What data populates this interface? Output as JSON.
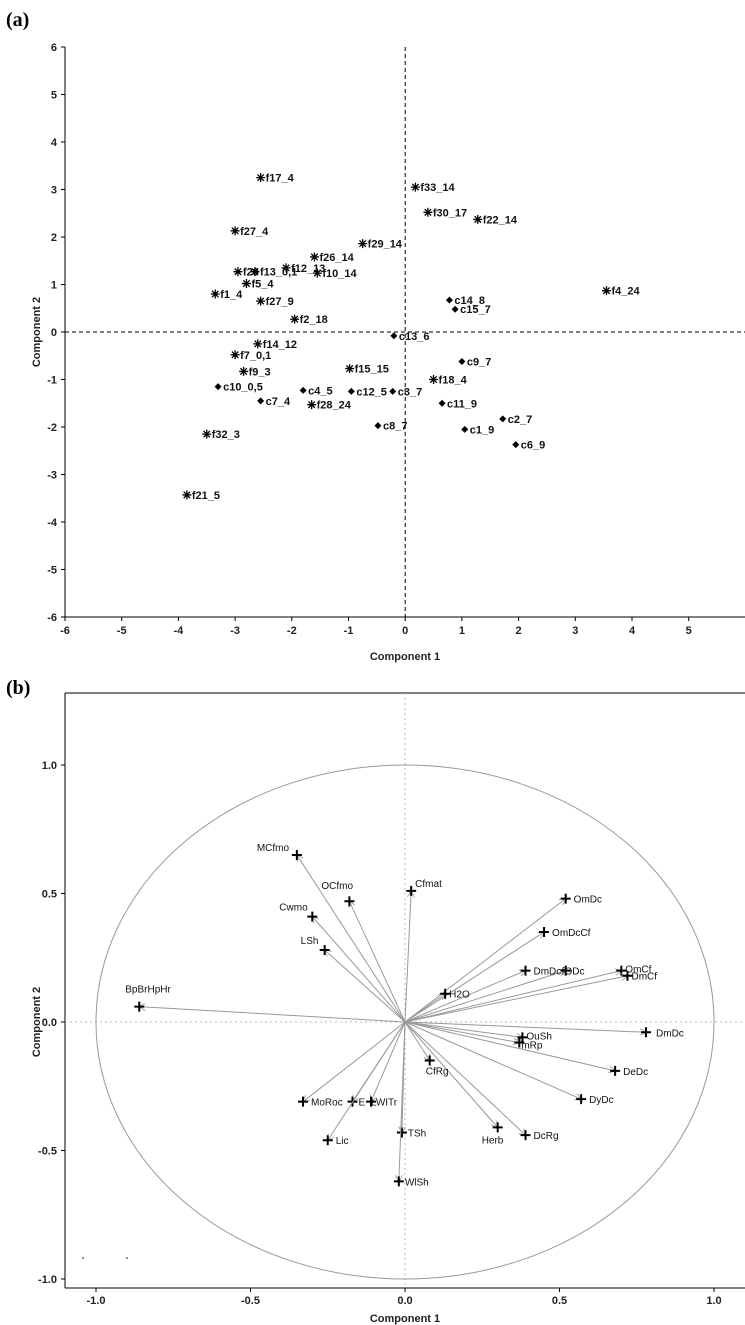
{
  "chart_data": [
    {
      "panel": "(a)",
      "type": "scatter",
      "xlabel": "Component 1",
      "ylabel": "Component 2",
      "xlim": [
        -6,
        6
      ],
      "ylim": [
        -6,
        6
      ],
      "xticks": [
        "-6",
        "-5",
        "-4",
        "-3",
        "-2",
        "-1",
        "0",
        "1",
        "2",
        "3",
        "4",
        "5",
        "6"
      ],
      "yticks": [
        "-6",
        "-5",
        "-4",
        "-3",
        "-2",
        "-1",
        "0",
        "1",
        "2",
        "3",
        "4",
        "5",
        "6"
      ],
      "series": [
        {
          "marker": "star",
          "points": [
            {
              "label": "f17_4",
              "x": -2.55,
              "y": 3.25
            },
            {
              "label": "f33_14",
              "x": 0.18,
              "y": 3.05
            },
            {
              "label": "f30_17",
              "x": 0.4,
              "y": 2.52
            },
            {
              "label": "f22_14",
              "x": 1.28,
              "y": 2.37
            },
            {
              "label": "f27_4",
              "x": -3.0,
              "y": 2.13
            },
            {
              "label": "f29_14",
              "x": -0.75,
              "y": 1.86
            },
            {
              "label": "f26_14",
              "x": -1.6,
              "y": 1.58
            },
            {
              "label": "f12_13",
              "x": -2.1,
              "y": 1.35
            },
            {
              "label": "f20",
              "x": -2.95,
              "y": 1.27
            },
            {
              "label": "f13_0,1",
              "x": -2.65,
              "y": 1.27
            },
            {
              "label": "f10_14",
              "x": -1.55,
              "y": 1.24
            },
            {
              "label": "f5_4",
              "x": -2.8,
              "y": 1.02
            },
            {
              "label": "f1_4",
              "x": -3.35,
              "y": 0.8
            },
            {
              "label": "f27_9",
              "x": -2.55,
              "y": 0.65
            },
            {
              "label": "f4_24",
              "x": 3.55,
              "y": 0.87
            },
            {
              "label": "f2_18",
              "x": -1.95,
              "y": 0.27
            },
            {
              "label": "f14_12",
              "x": -2.6,
              "y": -0.25
            },
            {
              "label": "f7_0,1",
              "x": -3.0,
              "y": -0.48
            },
            {
              "label": "f9_3",
              "x": -2.85,
              "y": -0.83
            },
            {
              "label": "f15_15",
              "x": -0.98,
              "y": -0.77
            },
            {
              "label": "f18_4",
              "x": 0.5,
              "y": -1.0
            },
            {
              "label": "f28_24",
              "x": -1.65,
              "y": -1.53
            },
            {
              "label": "f32_3",
              "x": -3.5,
              "y": -2.15
            },
            {
              "label": "f21_5",
              "x": -3.85,
              "y": -3.43
            }
          ]
        },
        {
          "marker": "diamond",
          "points": [
            {
              "label": "c14_8",
              "x": 0.78,
              "y": 0.67
            },
            {
              "label": "c15_7",
              "x": 0.88,
              "y": 0.48
            },
            {
              "label": "c13_6",
              "x": -0.2,
              "y": -0.08
            },
            {
              "label": "c9_7",
              "x": 1.0,
              "y": -0.62
            },
            {
              "label": "c10_0,5",
              "x": -3.3,
              "y": -1.15
            },
            {
              "label": "c4_5",
              "x": -1.8,
              "y": -1.23
            },
            {
              "label": "c12_5",
              "x": -0.95,
              "y": -1.25
            },
            {
              "label": "c3_7",
              "x": -0.22,
              "y": -1.25
            },
            {
              "label": "c7_4",
              "x": -2.55,
              "y": -1.45
            },
            {
              "label": "c11_9",
              "x": 0.65,
              "y": -1.5
            },
            {
              "label": "c2_7",
              "x": 1.72,
              "y": -1.83
            },
            {
              "label": "c8_7",
              "x": -0.48,
              "y": -1.97
            },
            {
              "label": "c1_9",
              "x": 1.05,
              "y": -2.05
            },
            {
              "label": "c6_9",
              "x": 1.95,
              "y": -2.37
            }
          ]
        }
      ]
    },
    {
      "panel": "(b)",
      "type": "scatter",
      "subtype": "correlation-circle loading plot",
      "xlabel": "Component 1",
      "ylabel": "Component 2",
      "xlim": [
        -1.1,
        1.1
      ],
      "ylim": [
        -1.1,
        1.1
      ],
      "xticks": [
        "-1.0",
        "-0.5",
        "0.0",
        "0.5",
        "1.0"
      ],
      "yticks": [
        "-1.0",
        "-0.5",
        "0.0",
        "0.5",
        "1.0"
      ],
      "points": [
        {
          "label": "MCfmo",
          "x": -0.35,
          "y": 0.65
        },
        {
          "label": "OCfmo",
          "x": -0.18,
          "y": 0.47
        },
        {
          "label": "Cfmat",
          "x": 0.02,
          "y": 0.51
        },
        {
          "label": "Cwmo",
          "x": -0.3,
          "y": 0.41
        },
        {
          "label": "LSh",
          "x": -0.26,
          "y": 0.28
        },
        {
          "label": "BpBrHpHr",
          "x": -0.86,
          "y": 0.06
        },
        {
          "label": "OmDc",
          "x": 0.52,
          "y": 0.48
        },
        {
          "label": "OmDcCf",
          "x": 0.45,
          "y": 0.35
        },
        {
          "label": "DmDc",
          "x": 0.39,
          "y": 0.2
        },
        {
          "label": "fODc",
          "x": 0.52,
          "y": 0.2
        },
        {
          "label": "OmCf",
          "x": 0.7,
          "y": 0.2
        },
        {
          "label": "DmCf",
          "x": 0.72,
          "y": 0.18
        },
        {
          "label": "H2O",
          "x": 0.13,
          "y": 0.11
        },
        {
          "label": "DmDc",
          "x": 0.78,
          "y": -0.04
        },
        {
          "label": "OuSh",
          "x": 0.38,
          "y": -0.06
        },
        {
          "label": "mRp",
          "x": 0.37,
          "y": -0.08
        },
        {
          "label": "CfRg",
          "x": 0.08,
          "y": -0.15
        },
        {
          "label": "DeDc",
          "x": 0.68,
          "y": -0.19
        },
        {
          "label": "DyDc",
          "x": 0.57,
          "y": -0.3
        },
        {
          "label": "MoRoc",
          "x": -0.33,
          "y": -0.31
        },
        {
          "label": "E",
          "x": -0.17,
          "y": -0.31
        },
        {
          "label": "LWITr",
          "x": -0.11,
          "y": -0.31
        },
        {
          "label": "Herb",
          "x": 0.3,
          "y": -0.41
        },
        {
          "label": "DcRg",
          "x": 0.39,
          "y": -0.44
        },
        {
          "label": "TSh",
          "x": -0.01,
          "y": -0.43
        },
        {
          "label": "Lic",
          "x": -0.25,
          "y": -0.46
        },
        {
          "label": "WlSh",
          "x": -0.02,
          "y": -0.62
        }
      ]
    }
  ]
}
